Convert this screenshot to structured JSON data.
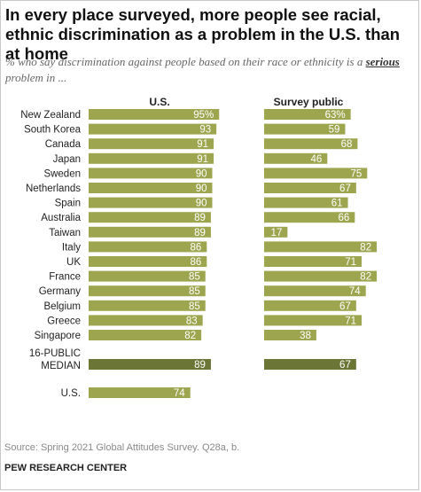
{
  "title": "In every place surveyed, more people see racial, ethnic discrimination as a problem in the U.S. than at home",
  "subtitle": {
    "before": "% who say discrimination against people based on their race or ethnicity is a ",
    "emphasis": "serious",
    "after": " problem in ..."
  },
  "source": "Source: Spring 2021 Global Attitudes Survey. Q28a, b.",
  "org": "PEW RESEARCH CENTER",
  "colors": {
    "bar": "#9da64f",
    "median_bar": "#6a7536",
    "label": "#ffffff"
  },
  "chart_data": {
    "type": "bar",
    "orientation": "horizontal",
    "categories": [
      "New Zealand",
      "South Korea",
      "Canada",
      "Japan",
      "Sweden",
      "Netherlands",
      "Spain",
      "Australia",
      "Taiwan",
      "Italy",
      "UK",
      "France",
      "Germany",
      "Belgium",
      "Greece",
      "Singapore"
    ],
    "series": [
      {
        "name": "U.S.",
        "values": [
          95,
          93,
          91,
          91,
          90,
          90,
          90,
          89,
          89,
          86,
          86,
          85,
          85,
          85,
          83,
          82
        ],
        "value_labels": [
          "95%",
          "93",
          "91",
          "91",
          "90",
          "90",
          "90",
          "89",
          "89",
          "86",
          "86",
          "85",
          "85",
          "85",
          "83",
          "82"
        ]
      },
      {
        "name": "Survey public",
        "values": [
          63,
          59,
          68,
          46,
          75,
          67,
          61,
          66,
          17,
          82,
          71,
          82,
          74,
          67,
          71,
          38
        ],
        "value_labels": [
          "63%",
          "59",
          "68",
          "46",
          "75",
          "67",
          "61",
          "66",
          "17",
          "82",
          "71",
          "82",
          "74",
          "67",
          "71",
          "38"
        ]
      }
    ],
    "median": {
      "label_line1": "16-PUBLIC",
      "label_line2": "MEDIAN",
      "values": [
        89,
        67
      ]
    },
    "us_row": {
      "label": "U.S.",
      "value": 74,
      "value_label": "74"
    },
    "xlim": [
      0,
      100
    ]
  }
}
